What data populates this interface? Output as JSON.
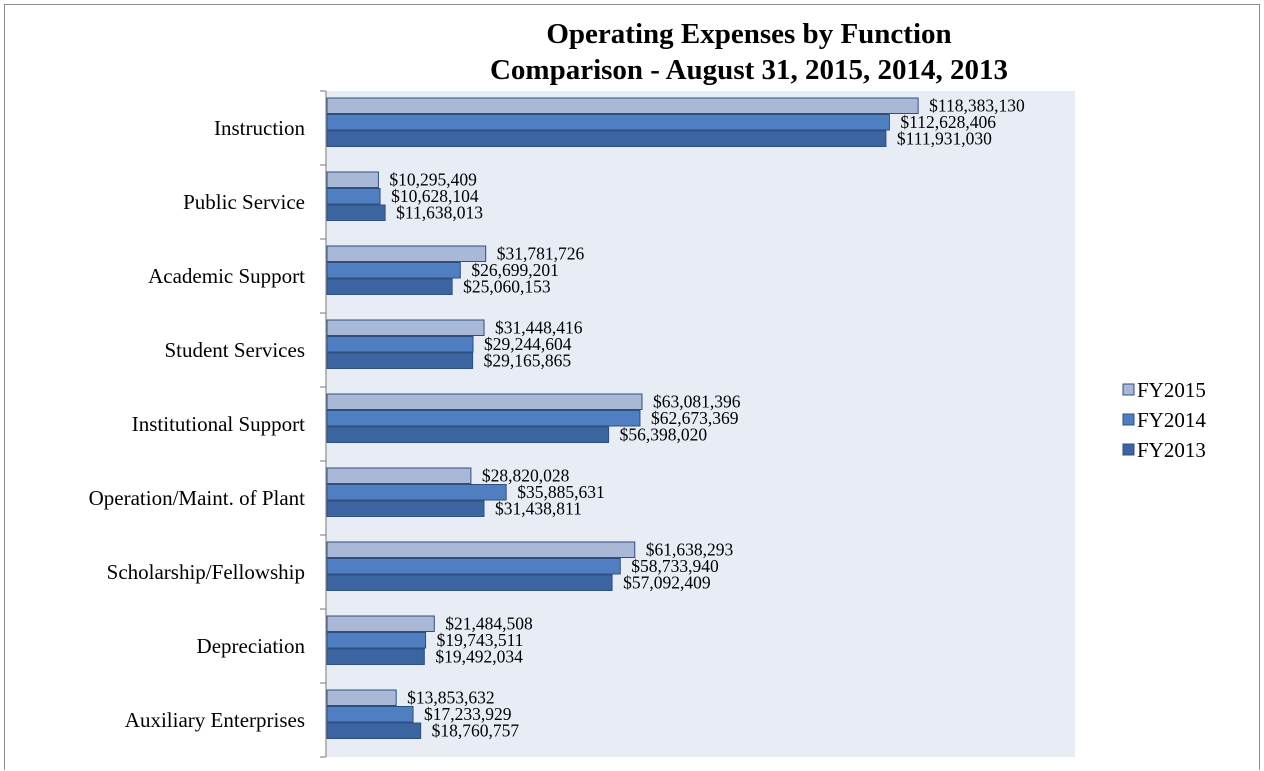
{
  "chart_data": {
    "type": "bar",
    "orientation": "horizontal",
    "title": "Operating Expenses by Function",
    "subtitle": "Comparison - August 31, 2015, 2014, 2013",
    "categories": [
      "Instruction",
      "Public Service",
      "Academic Support",
      "Student Services",
      "Institutional Support",
      "Operation/Maint. of Plant",
      "Scholarship/Fellowship",
      "Depreciation",
      "Auxiliary Enterprises"
    ],
    "series": [
      {
        "name": "FY2015",
        "color": "#a9b8d6",
        "values": [
          118383130,
          10295409,
          31781726,
          31448416,
          63081396,
          28820028,
          61638293,
          21484508,
          13853632
        ],
        "labels": [
          "$118,383,130",
          "$10,295,409",
          "$31,781,726",
          "$31,448,416",
          "$63,081,396",
          "$28,820,028",
          "$61,638,293",
          "$21,484,508",
          "$13,853,632"
        ]
      },
      {
        "name": "FY2014",
        "color": "#4f7fc1",
        "values": [
          112628406,
          10628104,
          26699201,
          29244604,
          62673369,
          35885631,
          58733940,
          19743511,
          17233929
        ],
        "labels": [
          "$112,628,406",
          "$10,628,104",
          "$26,699,201",
          "$29,244,604",
          "$62,673,369",
          "$35,885,631",
          "$58,733,940",
          "$19,743,511",
          "$17,233,929"
        ]
      },
      {
        "name": "FY2013",
        "color": "#3c64a0",
        "values": [
          111931030,
          11638013,
          25060153,
          29165865,
          56398020,
          31438811,
          57092409,
          19492034,
          18760757
        ],
        "labels": [
          "$111,931,030",
          "$11,638,013",
          "$25,060,153",
          "$29,165,865",
          "$56,398,020",
          "$31,438,811",
          "$57,092,409",
          "$19,492,034",
          "$18,760,757"
        ]
      }
    ],
    "xlim": [
      0,
      150000000
    ],
    "grid": false,
    "legend_position": "right",
    "plot_background": "#e8ecf5"
  }
}
